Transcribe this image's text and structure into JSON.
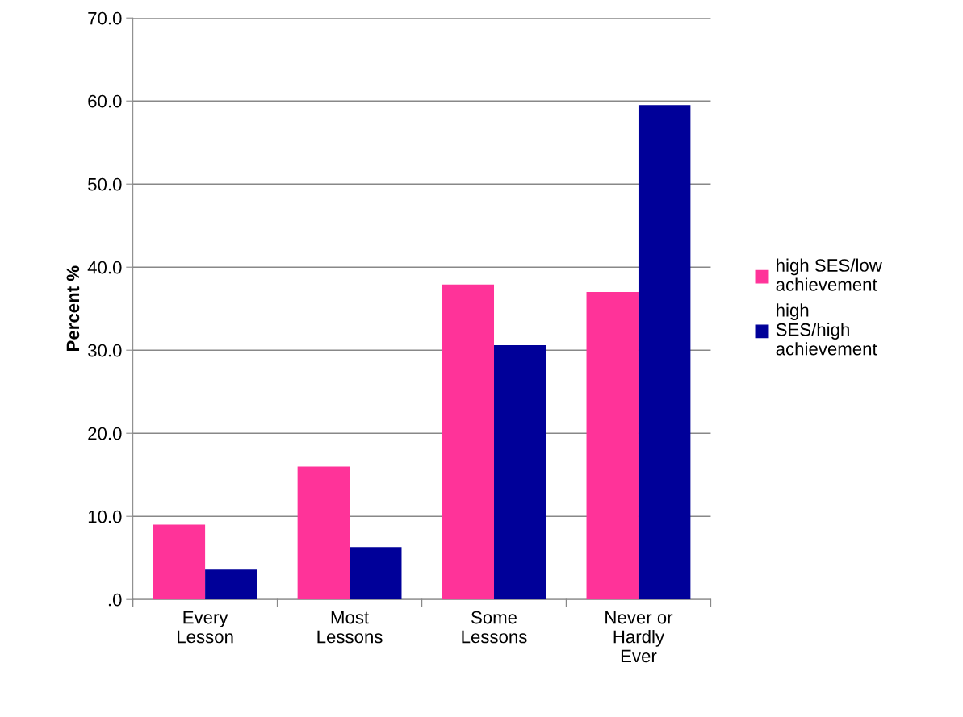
{
  "chart_data": {
    "type": "bar",
    "ylabel": "Percent %",
    "categories": [
      "Every Lesson",
      "Most Lessons",
      "Some Lessons",
      "Never or Hardly Ever"
    ],
    "series": [
      {
        "name": "high SES/low achievement",
        "color": "#ff3399",
        "values": [
          9.0,
          16.0,
          37.9,
          37.0
        ]
      },
      {
        "name": "high SES/high achievement",
        "color": "#000099",
        "values": [
          3.6,
          6.3,
          30.6,
          59.5
        ]
      }
    ],
    "ylim": [
      0,
      70
    ],
    "yticks": [
      {
        "value": 0,
        "label": ".0"
      },
      {
        "value": 10,
        "label": "10.0"
      },
      {
        "value": 20,
        "label": "20.0"
      },
      {
        "value": 30,
        "label": "30.0"
      },
      {
        "value": 40,
        "label": "40.0"
      },
      {
        "value": 50,
        "label": "50.0"
      },
      {
        "value": 60,
        "label": "60.0"
      },
      {
        "value": 70,
        "label": "70.0"
      }
    ],
    "grid": "y",
    "legend": "right"
  }
}
